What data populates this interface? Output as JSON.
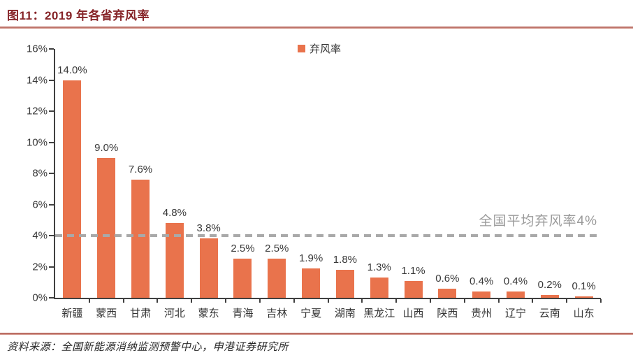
{
  "header": {
    "title": "图11：2019 年各省弃风率"
  },
  "legend": {
    "label": "弃风率"
  },
  "chart_data": {
    "type": "bar",
    "title": "2019 年各省弃风率",
    "categories": [
      "新疆",
      "蒙西",
      "甘肃",
      "河北",
      "蒙东",
      "青海",
      "吉林",
      "宁夏",
      "湖南",
      "黑龙江",
      "山西",
      "陕西",
      "贵州",
      "辽宁",
      "云南",
      "山东"
    ],
    "values": [
      14.0,
      9.0,
      7.6,
      4.8,
      3.8,
      2.5,
      2.5,
      1.9,
      1.8,
      1.3,
      1.1,
      0.6,
      0.4,
      0.4,
      0.2,
      0.1
    ],
    "value_labels": [
      "14.0%",
      "9.0%",
      "7.6%",
      "4.8%",
      "3.8%",
      "2.5%",
      "2.5%",
      "1.9%",
      "1.8%",
      "1.3%",
      "1.1%",
      "0.6%",
      "0.4%",
      "0.4%",
      "0.2%",
      "0.1%"
    ],
    "xlabel": "",
    "ylabel": "",
    "ylim": [
      0,
      16
    ],
    "ytick_step": 2,
    "ytick_labels": [
      "0%",
      "2%",
      "4%",
      "6%",
      "8%",
      "10%",
      "12%",
      "14%",
      "16%"
    ],
    "grid": false,
    "legend_entries": [
      "弃风率"
    ],
    "legend_position": "top-center",
    "average_line": {
      "value": 4,
      "label": "全国平均弃风率4%"
    }
  },
  "footer": {
    "source": "资料来源：全国新能源消纳监测预警中心，申港证券研究所"
  },
  "colors": {
    "bar": "#E9734C",
    "title_text": "#862428",
    "rule_dark": "#A84C42",
    "rule_light": "#DCA99E",
    "dashed_line": "#A9A9A9",
    "annotation_text": "#9B9B9B",
    "axis": "#404040",
    "label_text": "#383838"
  }
}
